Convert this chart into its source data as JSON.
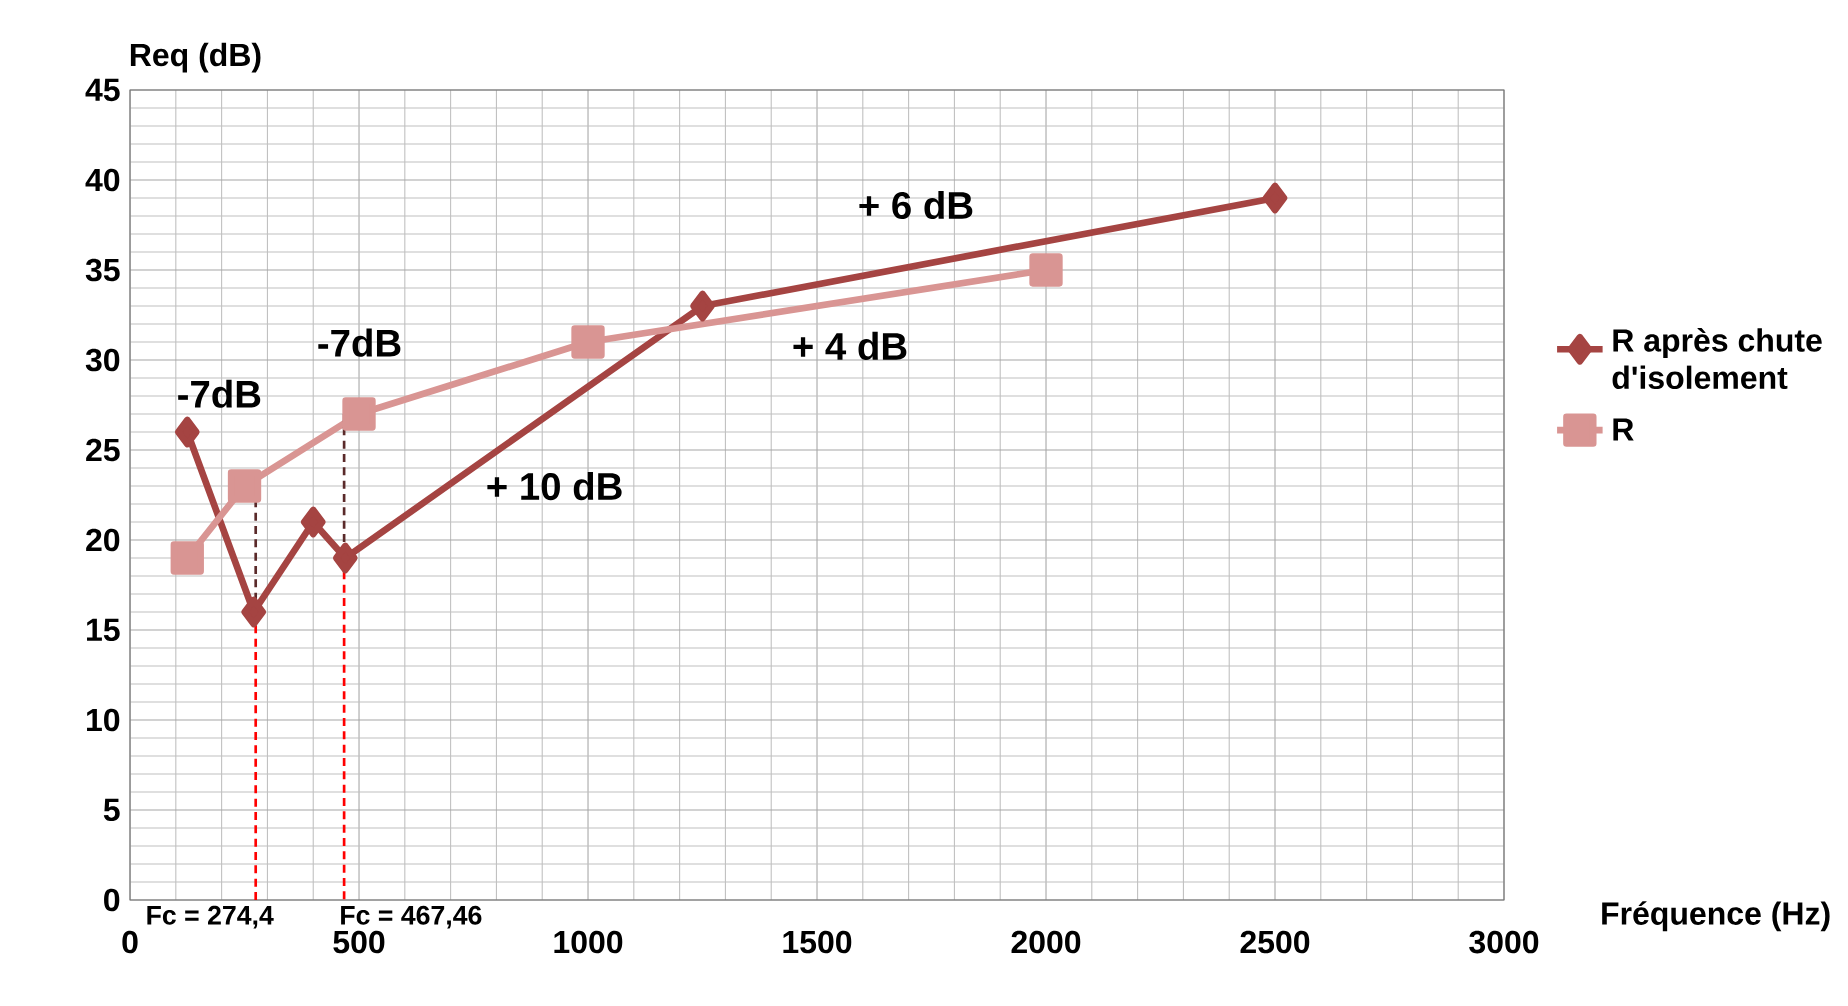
{
  "chart_data": {
    "type": "line",
    "xlabel": "Fréquence (Hz)",
    "ylabel": "Req (dB)",
    "xlim": [
      0,
      3000
    ],
    "xticks": [
      0,
      500,
      1000,
      1500,
      2000,
      2500,
      3000
    ],
    "ylim": [
      0,
      45
    ],
    "yticks": [
      0,
      5,
      10,
      15,
      20,
      25,
      30,
      35,
      40,
      45
    ],
    "grid": true,
    "legend": "right",
    "series": [
      {
        "name": "R après chute d'isolement",
        "color": "#a54442",
        "marker": "diamond",
        "x": [
          125,
          270,
          400,
          470,
          1250,
          2500
        ],
        "values": [
          26,
          16,
          21,
          19,
          33,
          39
        ]
      },
      {
        "name": "R",
        "color": "#d99593",
        "marker": "square",
        "x": [
          125,
          250,
          500,
          1000,
          2000
        ],
        "values": [
          19,
          23,
          27,
          31,
          35
        ]
      },
      {
        "color": "#ff0000",
        "marker": "none",
        "line_style": "dashed",
        "x": [
          274.4,
          274.4
        ],
        "values": [
          16,
          0
        ]
      },
      {
        "color": "#ff0000",
        "marker": "none",
        "line_style": "dashed",
        "x": [
          467.46,
          467.46
        ],
        "values": [
          19,
          0
        ]
      },
      {
        "color": "#5a2a2a",
        "marker": "none",
        "line_style": "dashed",
        "x": [
          274.4,
          274.4
        ],
        "values": [
          23,
          16
        ]
      },
      {
        "color": "#5a2a2a",
        "marker": "none",
        "line_style": "dashed",
        "x": [
          467.46,
          467.46
        ],
        "values": [
          27,
          19
        ]
      }
    ],
    "annotations": [
      "-7dB",
      "-7dB",
      "+ 10 dB",
      "+ 4 dB",
      "+ 6 dB",
      {
        "text": "Fc = 274,4",
        "x": 274.4,
        "y": 0
      },
      {
        "text": "Fc = 467,46",
        "x": 467.46,
        "y": 0
      }
    ]
  }
}
